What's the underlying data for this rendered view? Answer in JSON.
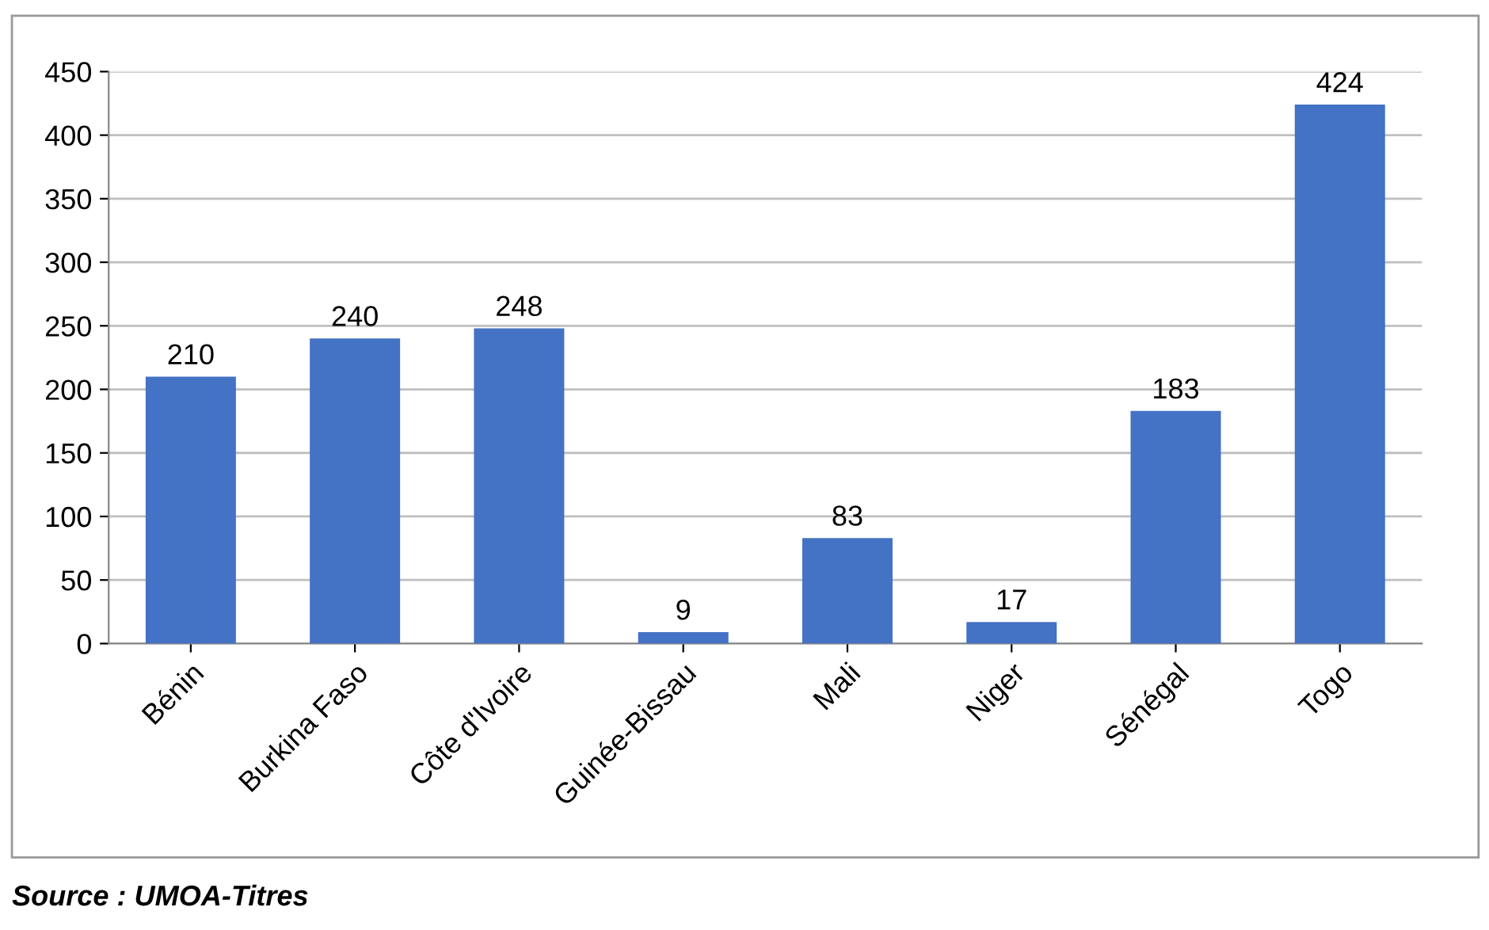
{
  "chart_data": {
    "type": "bar",
    "categories": [
      "Bénin",
      "Burkina Faso",
      "Côte d'Ivoire",
      "Guinée-Bissau",
      "Mali",
      "Niger",
      "Sénégal",
      "Togo"
    ],
    "values": [
      210,
      240,
      248,
      9,
      83,
      17,
      183,
      424
    ],
    "color": "#4472c4",
    "ylim": [
      0,
      450
    ],
    "yticks": [
      0,
      50,
      100,
      150,
      200,
      250,
      300,
      350,
      400,
      450
    ],
    "grid": "y",
    "data_labels": true,
    "legend": false,
    "annotations": [
      "Source : UMOA-Titres"
    ]
  }
}
